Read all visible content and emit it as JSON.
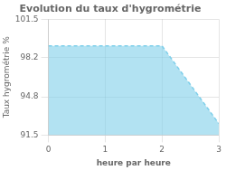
{
  "chart_data": {
    "type": "line",
    "title": "Evolution du taux d'hygrométrie",
    "xlabel": "heure par heure",
    "ylabel": "Taux hygrométrie %",
    "x": [
      0,
      2,
      3
    ],
    "values": [
      99.2,
      99.2,
      92.5
    ],
    "color": "#7ecfea",
    "line_style": "dashed",
    "xlim": [
      0,
      3
    ],
    "ylim": [
      91.5,
      101.5
    ],
    "xticks": [
      0,
      1,
      2,
      3
    ],
    "yticks": [
      91.5,
      94.8,
      98.2,
      101.5
    ],
    "grid": true
  }
}
